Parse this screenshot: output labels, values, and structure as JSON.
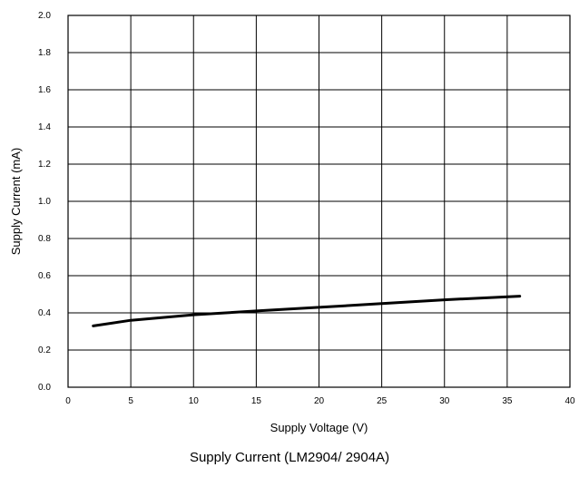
{
  "caption": "Supply Current (LM2904/ 2904A)",
  "colors": {
    "curve": "#000000",
    "grid": "#000000",
    "background": "#ffffff"
  },
  "chart_data": {
    "type": "line",
    "title": "Supply Current (LM2904/ 2904A)",
    "xlabel": "Supply Voltage (V)",
    "ylabel": "Supply Current (mA)",
    "xlim": [
      0,
      40
    ],
    "ylim": [
      0.0,
      2.0
    ],
    "x_ticks": [
      "0",
      "5",
      "10",
      "15",
      "20",
      "25",
      "30",
      "35",
      "40"
    ],
    "y_ticks": [
      "0.0",
      "0.2",
      "0.4",
      "0.6",
      "0.8",
      "1.0",
      "1.2",
      "1.4",
      "1.6",
      "1.8",
      "2.0"
    ],
    "grid": true,
    "series": [
      {
        "x": [
          2,
          5,
          10,
          15,
          20,
          25,
          30,
          36
        ],
        "y": [
          0.33,
          0.36,
          0.39,
          0.41,
          0.43,
          0.45,
          0.47,
          0.49
        ]
      }
    ]
  }
}
